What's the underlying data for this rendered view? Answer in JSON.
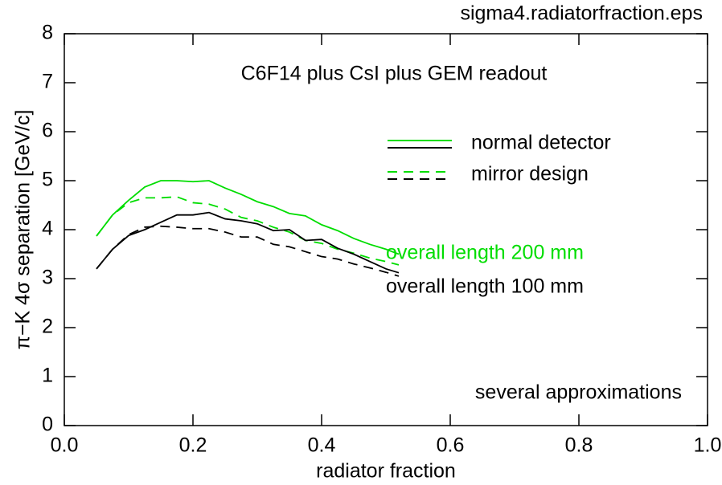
{
  "chart_data": {
    "type": "line",
    "header": "sigma4.radiatorfraction.eps",
    "title": "C6F14 plus CsI plus GEM readout",
    "xlabel": "radiator fraction",
    "ylabel": "π−K 4σ separation [GeV/c]",
    "note": "several approximations",
    "xlim": [
      0,
      1
    ],
    "ylim": [
      0,
      8
    ],
    "xticks": [
      {
        "value": 0,
        "label": "0.0"
      },
      0.2,
      0.4,
      0.6,
      0.8,
      {
        "value": 1,
        "label": "1.0"
      }
    ],
    "yticks": [
      0,
      1,
      2,
      3,
      4,
      5,
      6,
      7,
      8
    ],
    "x": [
      0.05,
      0.075,
      0.1,
      0.125,
      0.15,
      0.175,
      0.2,
      0.225,
      0.25,
      0.275,
      0.3,
      0.325,
      0.35,
      0.375,
      0.4,
      0.425,
      0.45,
      0.475,
      0.5,
      0.52
    ],
    "series": [
      {
        "color": "#00dd00",
        "dash": "solid",
        "values": [
          3.87,
          4.3,
          4.6,
          4.87,
          5.0,
          5.0,
          4.98,
          5.0,
          4.85,
          4.72,
          4.57,
          4.47,
          4.33,
          4.28,
          4.1,
          3.98,
          3.82,
          3.7,
          3.6,
          3.5
        ]
      },
      {
        "color": "#00dd00",
        "dash": "dashed",
        "values": [
          3.87,
          4.3,
          4.55,
          4.65,
          4.65,
          4.67,
          4.55,
          4.52,
          4.42,
          4.25,
          4.18,
          4.05,
          3.95,
          3.78,
          3.72,
          3.6,
          3.52,
          3.42,
          3.35,
          3.28
        ]
      },
      {
        "color": "#000000",
        "dash": "solid",
        "values": [
          3.2,
          3.6,
          3.88,
          4.0,
          4.15,
          4.3,
          4.3,
          4.35,
          4.22,
          4.18,
          4.12,
          3.98,
          4.0,
          3.78,
          3.8,
          3.62,
          3.5,
          3.35,
          3.2,
          3.12
        ]
      },
      {
        "color": "#000000",
        "dash": "dashed",
        "values": [
          3.2,
          3.6,
          3.9,
          4.05,
          4.07,
          4.05,
          4.02,
          4.02,
          3.95,
          3.85,
          3.85,
          3.7,
          3.65,
          3.55,
          3.45,
          3.4,
          3.3,
          3.22,
          3.13,
          3.05
        ]
      }
    ],
    "legend": [
      {
        "label": "normal detector",
        "dash": "solid",
        "colors": [
          "#00dd00",
          "#000000"
        ]
      },
      {
        "label": "mirror design",
        "dash": "dashed",
        "colors": [
          "#00dd00",
          "#000000"
        ]
      }
    ],
    "annotations": [
      {
        "text": "overall length 200 mm",
        "color": "#00dd00"
      },
      {
        "text": "overall length 100 mm",
        "color": "#000000"
      }
    ]
  }
}
